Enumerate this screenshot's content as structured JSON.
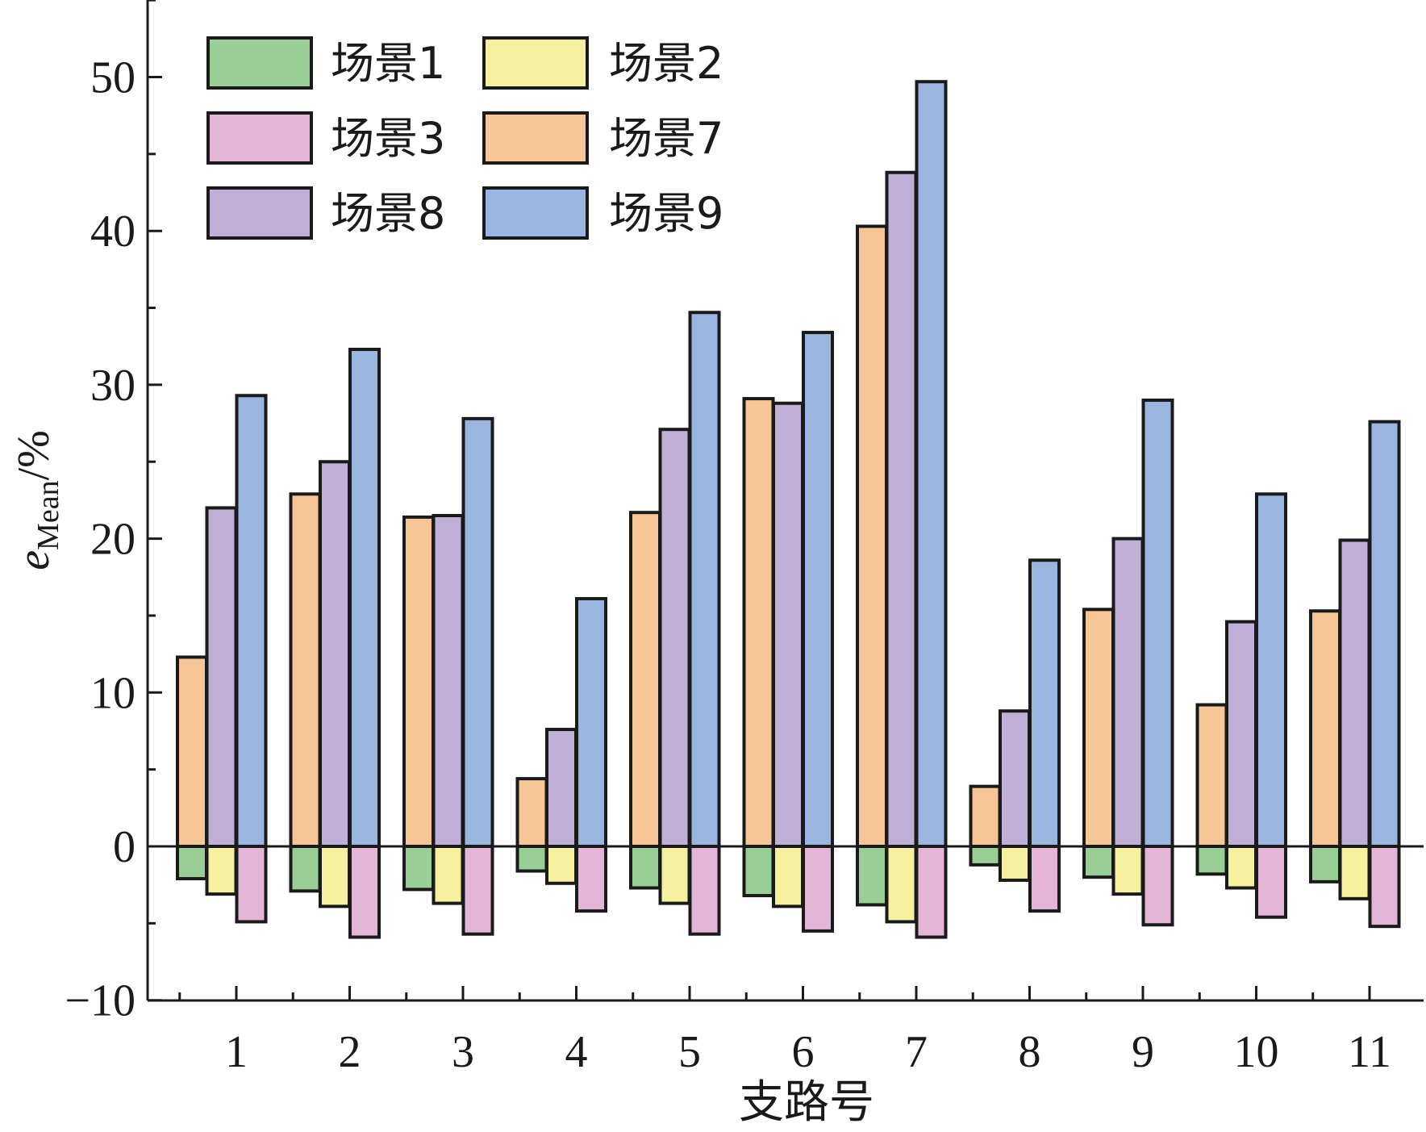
{
  "chart_data": {
    "type": "bar",
    "xlabel": "支路号",
    "ylabel_main": "e",
    "ylabel_sub": "Mean",
    "ylabel_suffix": "/%",
    "ylim": [
      -10,
      55
    ],
    "yticks": [
      -10,
      0,
      10,
      20,
      30,
      40,
      50
    ],
    "ytick_labels": [
      "−10",
      "0",
      "10",
      "20",
      "30",
      "40",
      "50"
    ],
    "categories": [
      "1",
      "2",
      "3",
      "4",
      "5",
      "6",
      "7",
      "8",
      "9",
      "10",
      "11"
    ],
    "legend_position": "top-left",
    "grid": false,
    "series": [
      {
        "name": "场景1",
        "color": "#99cf96",
        "values": [
          -2.1,
          -2.9,
          -2.8,
          -1.6,
          -2.7,
          -3.2,
          -3.8,
          -1.2,
          -2.0,
          -1.8,
          -2.3
        ]
      },
      {
        "name": "场景2",
        "color": "#f6f19f",
        "values": [
          -3.1,
          -3.9,
          -3.7,
          -2.4,
          -3.7,
          -3.9,
          -4.9,
          -2.2,
          -3.1,
          -2.7,
          -3.4
        ]
      },
      {
        "name": "场景3",
        "color": "#e3b6d6",
        "values": [
          -4.9,
          -5.9,
          -5.7,
          -4.2,
          -5.7,
          -5.5,
          -5.9,
          -4.2,
          -5.1,
          -4.6,
          -5.2
        ]
      },
      {
        "name": "场景7",
        "color": "#f6c697",
        "values": [
          12.3,
          22.9,
          21.4,
          4.4,
          21.7,
          29.1,
          40.3,
          3.9,
          15.4,
          9.2,
          15.3
        ]
      },
      {
        "name": "场景8",
        "color": "#c0afd6",
        "values": [
          22.0,
          25.0,
          21.5,
          7.6,
          27.1,
          28.8,
          43.8,
          8.8,
          20.0,
          14.6,
          19.9
        ]
      },
      {
        "name": "场景9",
        "color": "#9ab5e0",
        "values": [
          29.3,
          32.3,
          27.8,
          16.1,
          34.7,
          33.4,
          49.7,
          18.6,
          29.0,
          22.9,
          27.6
        ]
      }
    ]
  }
}
